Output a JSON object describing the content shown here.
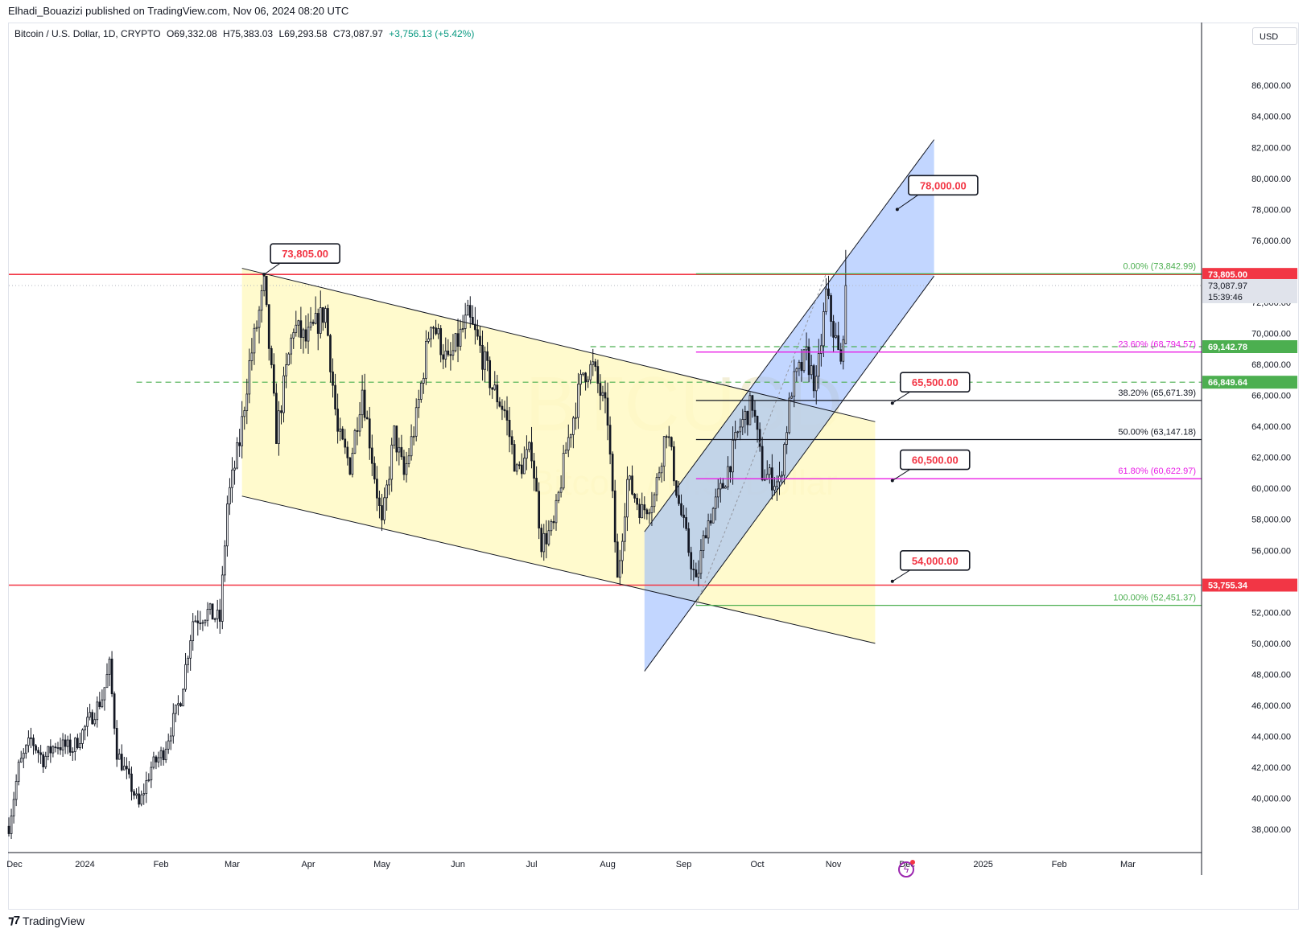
{
  "header": {
    "author": "Elhadi_Bouazizi",
    "published_text": "published on TradingView.com, Nov 06, 2024 08:20 UTC"
  },
  "legend": {
    "symbol": "Bitcoin / U.S. Dollar, 1D, CRYPTO",
    "open": "O69,332.08",
    "high": "H75,383.03",
    "low": "L69,293.58",
    "close": "C73,087.97",
    "change": "+3,756.13 (+5.42%)"
  },
  "price_scale": {
    "currency": "USD"
  },
  "watermark": {
    "ticker": "BTCUSD",
    "name": "Bitcoin / U.S. Dollar"
  },
  "colors": {
    "up": "#089981",
    "candle": "#131722",
    "red_line": "#f23645",
    "green_line": "#4caf50",
    "magenta": "#e91ee6",
    "yellow_fill": "#fff9c4",
    "blue_fill": "#90b4ff",
    "label_red": "#f23645"
  },
  "chart_data": {
    "type": "candlestick",
    "symbol": "BTCUSD",
    "interval": "1D",
    "ylim": [
      36500,
      88500
    ],
    "y_ticks": [
      38000,
      40000,
      42000,
      44000,
      46000,
      48000,
      50000,
      52000,
      54000,
      56000,
      58000,
      60000,
      62000,
      64000,
      66000,
      68000,
      70000,
      72000,
      74000,
      76000,
      78000,
      80000,
      82000,
      84000,
      86000
    ],
    "y_tick_labels": [
      "38,000.00",
      "40,000.00",
      "42,000.00",
      "44,000.00",
      "46,000.00",
      "48,000.00",
      "50,000.00",
      "52,000.00",
      "54,000.00",
      "56,000.00",
      "58,000.00",
      "60,000.00",
      "62,000.00",
      "64,000.00",
      "66,000.00",
      "68,000.00",
      "70,000.00",
      "72,000.00",
      "74,000.00",
      "76,000.00",
      "78,000.00",
      "80,000.00",
      "82,000.00",
      "84,000.00",
      "86,000.00"
    ],
    "x_range": [
      "2023-12-01",
      "2025-03-31"
    ],
    "x_ticks": [
      {
        "date": "2023-12-01",
        "label": "Dec"
      },
      {
        "date": "2024-01-01",
        "label": "2024"
      },
      {
        "date": "2024-02-01",
        "label": "Feb"
      },
      {
        "date": "2024-03-01",
        "label": "Mar"
      },
      {
        "date": "2024-04-01",
        "label": "Apr"
      },
      {
        "date": "2024-05-01",
        "label": "May"
      },
      {
        "date": "2024-06-01",
        "label": "Jun"
      },
      {
        "date": "2024-07-01",
        "label": "Jul"
      },
      {
        "date": "2024-08-01",
        "label": "Aug"
      },
      {
        "date": "2024-09-01",
        "label": "Sep"
      },
      {
        "date": "2024-10-01",
        "label": "Oct"
      },
      {
        "date": "2024-11-01",
        "label": "Nov"
      },
      {
        "date": "2024-12-01",
        "label": "Dec"
      },
      {
        "date": "2025-01-01",
        "label": "2025"
      },
      {
        "date": "2025-02-01",
        "label": "Feb"
      },
      {
        "date": "2025-03-01",
        "label": "Mar"
      }
    ],
    "price_path": [
      [
        "2023-12-01",
        38200
      ],
      [
        "2023-12-05",
        42000
      ],
      [
        "2023-12-10",
        43800
      ],
      [
        "2023-12-15",
        42500
      ],
      [
        "2023-12-20",
        43500
      ],
      [
        "2023-12-27",
        43200
      ],
      [
        "2024-01-02",
        44800
      ],
      [
        "2024-01-08",
        46500
      ],
      [
        "2024-01-11",
        48500
      ],
      [
        "2024-01-14",
        43000
      ],
      [
        "2024-01-18",
        41500
      ],
      [
        "2024-01-23",
        39500
      ],
      [
        "2024-01-28",
        42000
      ],
      [
        "2024-02-02",
        43000
      ],
      [
        "2024-02-09",
        46500
      ],
      [
        "2024-02-14",
        51500
      ],
      [
        "2024-02-20",
        52000
      ],
      [
        "2024-02-25",
        51500
      ],
      [
        "2024-02-28",
        59000
      ],
      [
        "2024-03-04",
        63000
      ],
      [
        "2024-03-08",
        68000
      ],
      [
        "2024-03-14",
        73000
      ],
      [
        "2024-03-19",
        63500
      ],
      [
        "2024-03-26",
        70500
      ],
      [
        "2024-03-31",
        69500
      ],
      [
        "2024-04-08",
        71500
      ],
      [
        "2024-04-13",
        63500
      ],
      [
        "2024-04-18",
        61500
      ],
      [
        "2024-04-23",
        66500
      ],
      [
        "2024-05-01",
        57500
      ],
      [
        "2024-05-06",
        63500
      ],
      [
        "2024-05-10",
        60800
      ],
      [
        "2024-05-15",
        64500
      ],
      [
        "2024-05-21",
        71000
      ],
      [
        "2024-05-28",
        68000
      ],
      [
        "2024-06-05",
        71000
      ],
      [
        "2024-06-09",
        69500
      ],
      [
        "2024-06-15",
        66500
      ],
      [
        "2024-06-20",
        65000
      ],
      [
        "2024-06-25",
        61000
      ],
      [
        "2024-07-01",
        62500
      ],
      [
        "2024-07-05",
        56500
      ],
      [
        "2024-07-10",
        57500
      ],
      [
        "2024-07-15",
        62500
      ],
      [
        "2024-07-22",
        67500
      ],
      [
        "2024-07-26",
        67800
      ],
      [
        "2024-08-01",
        64500
      ],
      [
        "2024-08-05",
        54000
      ],
      [
        "2024-08-09",
        60500
      ],
      [
        "2024-08-15",
        58500
      ],
      [
        "2024-08-20",
        59500
      ],
      [
        "2024-08-25",
        64000
      ],
      [
        "2024-08-30",
        59000
      ],
      [
        "2024-09-06",
        53800
      ],
      [
        "2024-09-10",
        57500
      ],
      [
        "2024-09-17",
        60200
      ],
      [
        "2024-09-24",
        64000
      ],
      [
        "2024-09-29",
        65500
      ],
      [
        "2024-10-03",
        61000
      ],
      [
        "2024-10-10",
        60300
      ],
      [
        "2024-10-15",
        66500
      ],
      [
        "2024-10-21",
        68500
      ],
      [
        "2024-10-25",
        66500
      ],
      [
        "2024-10-29",
        72500
      ],
      [
        "2024-11-02",
        69500
      ],
      [
        "2024-11-04",
        67800
      ],
      [
        "2024-11-06",
        73087.97
      ]
    ],
    "last_candle": {
      "date": "2024-11-06",
      "open": 69332.08,
      "high": 75383.03,
      "low": 69293.58,
      "close": 73087.97
    },
    "horizontal_lines": [
      {
        "value": 73805,
        "color": "red",
        "style": "solid"
      },
      {
        "value": 53755.34,
        "color": "red",
        "style": "solid"
      },
      {
        "value": 69142.78,
        "color": "green",
        "style": "dashed"
      },
      {
        "value": 66849.64,
        "color": "green",
        "style": "dashed"
      }
    ],
    "fibonacci": [
      {
        "label": "0.00% (73,842.99)",
        "value": 73842.99,
        "color": "#4caf50"
      },
      {
        "label": "23.60% (68,794.57)",
        "value": 68794.57,
        "color": "#e91ee6"
      },
      {
        "label": "38.20% (65,671.39)",
        "value": 65671.39,
        "color": "#131722"
      },
      {
        "label": "50.00% (63,147.18)",
        "value": 63147.18,
        "color": "#131722"
      },
      {
        "label": "61.80% (60,622.97)",
        "value": 60622.97,
        "color": "#e91ee6"
      },
      {
        "label": "100.00% (52,451.37)",
        "value": 52451.37,
        "color": "#4caf50"
      }
    ],
    "annotations": [
      {
        "text": "73,805.00",
        "date": "2024-03-14",
        "value": 73805
      },
      {
        "text": "78,000.00",
        "date": "2024-11-27",
        "value": 78000
      },
      {
        "text": "65,500.00",
        "date": "2024-11-25",
        "value": 65500
      },
      {
        "text": "60,500.00",
        "date": "2024-11-25",
        "value": 60500
      },
      {
        "text": "54,000.00",
        "date": "2024-11-25",
        "value": 54000
      }
    ],
    "price_labels": [
      {
        "text": "73,805.00",
        "value": 73805,
        "bg": "#f23645",
        "fg": "#ffffff"
      },
      {
        "text": "69,142.78",
        "value": 69142.78,
        "bg": "#4caf50",
        "fg": "#ffffff"
      },
      {
        "text": "66,849.64",
        "value": 66849.64,
        "bg": "#4caf50",
        "fg": "#ffffff"
      },
      {
        "text": "53,755.34",
        "value": 53755.34,
        "bg": "#f23645",
        "fg": "#ffffff"
      }
    ],
    "current_price": {
      "symbol": "BTCUSD",
      "price": "73,087.97",
      "countdown": "15:39:46",
      "value": 73087.97
    },
    "descending_channel": {
      "upper": [
        [
          "2024-03-05",
          74200
        ],
        [
          "2024-11-18",
          64300
        ]
      ],
      "lower": [
        [
          "2024-03-05",
          59500
        ],
        [
          "2024-11-18",
          50000
        ]
      ],
      "fill_end": "2024-11-18"
    },
    "ascending_channel": {
      "upper": [
        [
          "2024-08-16",
          57200
        ],
        [
          "2024-12-12",
          82500
        ]
      ],
      "lower": [
        [
          "2024-08-16",
          48200
        ],
        [
          "2024-12-12",
          73700
        ]
      ],
      "fill_end": "2024-12-12"
    }
  },
  "footer": {
    "brand": "TradingView"
  }
}
